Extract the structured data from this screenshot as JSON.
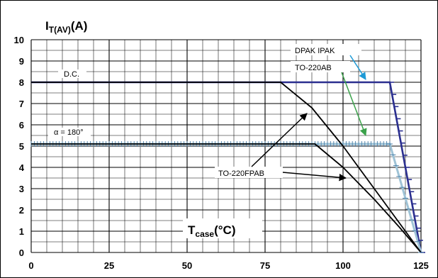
{
  "chart_data": {
    "type": "line",
    "ylabel_main": "I",
    "ylabel_sub": "T(AV)",
    "ylabel_unit": "(A)",
    "xlabel_main": "T",
    "xlabel_sub": "case",
    "xlabel_unit": "(°C)",
    "xlim": [
      0,
      125
    ],
    "ylim": [
      0,
      10
    ],
    "x_ticks": [
      "0",
      "25",
      "50",
      "75",
      "100",
      "125"
    ],
    "y_ticks": [
      "0",
      "1",
      "2",
      "3",
      "4",
      "5",
      "6",
      "7",
      "8",
      "9",
      "10"
    ],
    "grid": true,
    "annotations": {
      "dc": "D.C.",
      "alpha": "α = 180°",
      "dpak": "DPAK  IPAK",
      "to220ab": "TO-220AB",
      "to220fpab": "TO-220FPAB"
    },
    "series": [
      {
        "x": [
          0,
          115,
          125
        ],
        "y": [
          8,
          8,
          0
        ]
      },
      {
        "x": [
          0,
          115,
          125
        ],
        "y": [
          5.1,
          5.1,
          0
        ]
      },
      {
        "x": [
          0,
          80,
          90,
          100,
          110,
          118,
          125
        ],
        "y": [
          8,
          8,
          6.8,
          5.0,
          3.0,
          1.4,
          0
        ]
      },
      {
        "x": [
          0,
          91,
          100,
          110,
          118,
          125
        ],
        "y": [
          5.1,
          5.1,
          4.0,
          2.5,
          1.2,
          0
        ]
      }
    ],
    "colors": {
      "dc_line": "#2b2f8f",
      "alpha_line": "#9fc3d6",
      "alpha_marks": "#4a7fa8",
      "dpak_arrow": "#1e9ad6",
      "to220ab_arrow": "#3aa14a",
      "curve": "#000000",
      "grid": "#000000"
    }
  }
}
